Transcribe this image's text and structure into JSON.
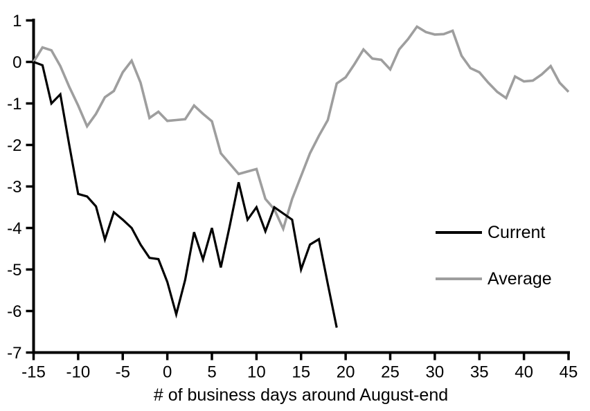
{
  "chart_data": {
    "type": "line",
    "title": "",
    "xlabel": "# of business days around August-end",
    "ylabel": "",
    "xlim": [
      -15,
      45
    ],
    "ylim": [
      -7,
      1
    ],
    "x_ticks": [
      -15,
      -10,
      -5,
      0,
      5,
      10,
      15,
      20,
      25,
      30,
      35,
      40,
      45
    ],
    "y_ticks": [
      1,
      0,
      -1,
      -2,
      -3,
      -4,
      -5,
      -6,
      -7
    ],
    "grid": false,
    "axis_color": "#000000",
    "legend_position": "middle-right",
    "series": [
      {
        "name": "Current",
        "color": "#000000",
        "x": [
          -15,
          -14,
          -13,
          -12,
          -11,
          -10,
          -9,
          -8,
          -7,
          -6,
          -5,
          -4,
          -3,
          -2,
          -1,
          0,
          1,
          2,
          3,
          4,
          5,
          6,
          7,
          8,
          9,
          10,
          11,
          12,
          13,
          14,
          15,
          16,
          17,
          18,
          19
        ],
        "values": [
          0.0,
          -0.08,
          -1.0,
          -0.78,
          -2.0,
          -3.18,
          -3.24,
          -3.48,
          -4.28,
          -3.62,
          -3.8,
          -4.0,
          -4.4,
          -4.72,
          -4.75,
          -5.3,
          -6.08,
          -5.25,
          -4.1,
          -4.76,
          -4.0,
          -4.95,
          -3.95,
          -2.9,
          -3.8,
          -3.5,
          -4.08,
          -3.5,
          -3.65,
          -3.8,
          -5.0,
          -4.4,
          -4.27,
          -5.35,
          -6.4
        ]
      },
      {
        "name": "Average",
        "color": "#9E9E9E",
        "x": [
          -15,
          -14,
          -13,
          -12,
          -11,
          -10,
          -9,
          -8,
          -7,
          -6,
          -5,
          -4,
          -3,
          -2,
          -1,
          0,
          1,
          2,
          3,
          4,
          5,
          6,
          7,
          8,
          9,
          10,
          11,
          12,
          13,
          14,
          15,
          16,
          17,
          18,
          19,
          20,
          21,
          22,
          23,
          24,
          25,
          26,
          27,
          28,
          29,
          30,
          31,
          32,
          33,
          34,
          35,
          36,
          37,
          38,
          39,
          40,
          41,
          42,
          43,
          44,
          45
        ],
        "values": [
          0.0,
          0.35,
          0.28,
          -0.1,
          -0.6,
          -1.05,
          -1.55,
          -1.25,
          -0.85,
          -0.7,
          -0.25,
          0.03,
          -0.5,
          -1.35,
          -1.2,
          -1.42,
          -1.4,
          -1.38,
          -1.05,
          -1.25,
          -1.43,
          -2.2,
          -2.45,
          -2.7,
          -2.64,
          -2.58,
          -3.3,
          -3.55,
          -4.02,
          -3.3,
          -2.75,
          -2.2,
          -1.78,
          -1.4,
          -0.52,
          -0.37,
          -0.05,
          0.3,
          0.08,
          0.05,
          -0.18,
          0.3,
          0.55,
          0.85,
          0.72,
          0.66,
          0.67,
          0.75,
          0.15,
          -0.15,
          -0.25,
          -0.5,
          -0.72,
          -0.87,
          -0.35,
          -0.47,
          -0.45,
          -0.3,
          -0.1,
          -0.5,
          -0.72
        ]
      }
    ]
  }
}
